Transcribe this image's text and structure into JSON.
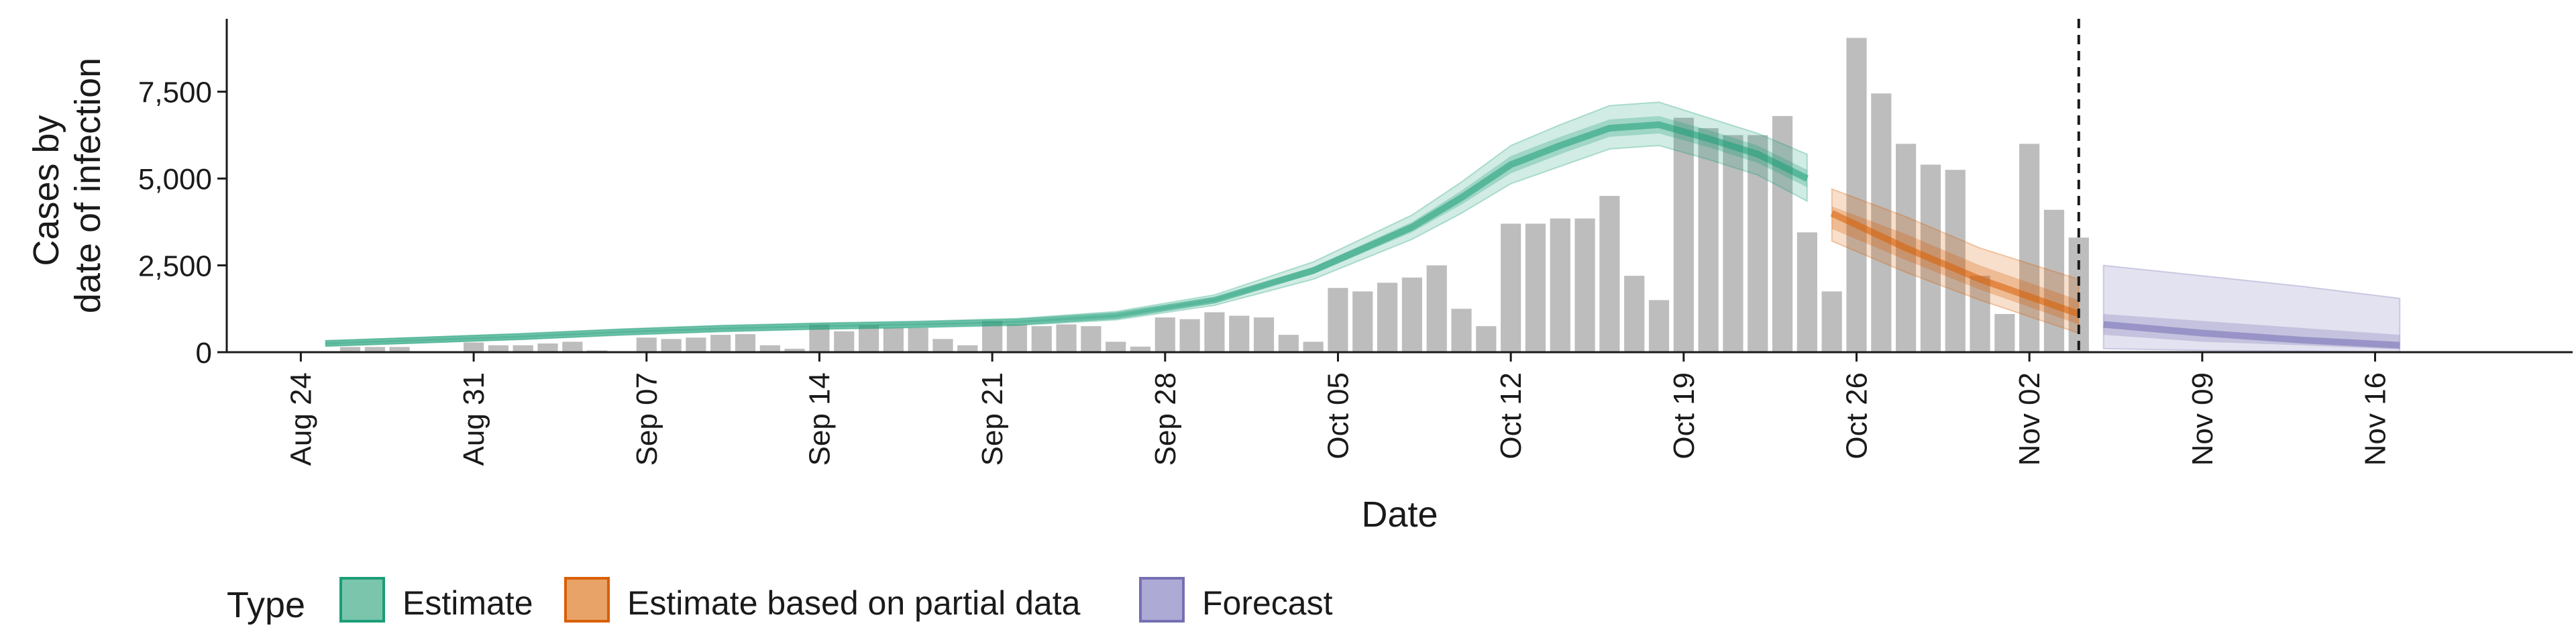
{
  "chart_data": {
    "type": "bar",
    "xlabel": "Date",
    "ylabel_lines": [
      "Cases by",
      "date of infection"
    ],
    "ylim": [
      0,
      9600
    ],
    "y_ticks": [
      0,
      2500,
      5000,
      7500
    ],
    "y_tick_labels": [
      "0",
      "2,500",
      "5,000",
      "7,500"
    ],
    "x_start": "2020-08-24",
    "x_range_days": [
      -3,
      92
    ],
    "x_ticks": [
      "2020-08-24",
      "2020-08-31",
      "2020-09-07",
      "2020-09-14",
      "2020-09-21",
      "2020-09-28",
      "2020-10-05",
      "2020-10-12",
      "2020-10-19",
      "2020-10-26",
      "2020-11-02",
      "2020-11-09",
      "2020-11-16"
    ],
    "x_tick_labels": [
      "Aug 24",
      "Aug 31",
      "Sep 07",
      "Sep 14",
      "Sep 21",
      "Sep 28",
      "Oct 05",
      "Oct 12",
      "Oct 19",
      "Oct 26",
      "Nov 02",
      "Nov 09",
      "Nov 16"
    ],
    "vline_date": "2020-11-04",
    "bars": {
      "color": "#bdbdbd",
      "dates": [
        "2020-08-26",
        "2020-08-27",
        "2020-08-28",
        "2020-08-29",
        "2020-08-30",
        "2020-08-31",
        "2020-09-01",
        "2020-09-02",
        "2020-09-03",
        "2020-09-04",
        "2020-09-05",
        "2020-09-06",
        "2020-09-07",
        "2020-09-08",
        "2020-09-09",
        "2020-09-10",
        "2020-09-11",
        "2020-09-12",
        "2020-09-13",
        "2020-09-14",
        "2020-09-15",
        "2020-09-16",
        "2020-09-17",
        "2020-09-18",
        "2020-09-19",
        "2020-09-20",
        "2020-09-21",
        "2020-09-22",
        "2020-09-23",
        "2020-09-24",
        "2020-09-25",
        "2020-09-26",
        "2020-09-27",
        "2020-09-28",
        "2020-09-29",
        "2020-09-30",
        "2020-10-01",
        "2020-10-02",
        "2020-10-03",
        "2020-10-04",
        "2020-10-05",
        "2020-10-06",
        "2020-10-07",
        "2020-10-08",
        "2020-10-09",
        "2020-10-10",
        "2020-10-11",
        "2020-10-12",
        "2020-10-13",
        "2020-10-14",
        "2020-10-15",
        "2020-10-16",
        "2020-10-17",
        "2020-10-18",
        "2020-10-19",
        "2020-10-20",
        "2020-10-21",
        "2020-10-22",
        "2020-10-23",
        "2020-10-24",
        "2020-10-25",
        "2020-10-26",
        "2020-10-27",
        "2020-10-28",
        "2020-10-29",
        "2020-10-30",
        "2020-10-31",
        "2020-11-01",
        "2020-11-02",
        "2020-11-03",
        "2020-11-04"
      ],
      "values": [
        150,
        150,
        150,
        0,
        0,
        280,
        200,
        200,
        250,
        300,
        50,
        0,
        420,
        380,
        420,
        500,
        520,
        200,
        100,
        800,
        600,
        780,
        700,
        700,
        380,
        200,
        900,
        800,
        750,
        800,
        750,
        300,
        160,
        1000,
        950,
        1150,
        1050,
        1000,
        500,
        300,
        1850,
        1750,
        2000,
        2150,
        2500,
        1250,
        750,
        3700,
        3700,
        3850,
        3850,
        4500,
        2200,
        1500,
        6750,
        6450,
        6250,
        6250,
        6800,
        3450,
        1750,
        9050,
        7450,
        6000,
        5400,
        5250,
        2200,
        1100,
        6000,
        4100,
        3300
      ]
    },
    "series": [
      {
        "name": "Estimate",
        "color": "#1b9e77",
        "dates": [
          "2020-08-25",
          "2020-08-29",
          "2020-09-02",
          "2020-09-06",
          "2020-09-10",
          "2020-09-14",
          "2020-09-18",
          "2020-09-22",
          "2020-09-26",
          "2020-09-30",
          "2020-10-04",
          "2020-10-08",
          "2020-10-10",
          "2020-10-12",
          "2020-10-14",
          "2020-10-16",
          "2020-10-18",
          "2020-10-20",
          "2020-10-22",
          "2020-10-24"
        ],
        "median": [
          250,
          350,
          450,
          580,
          680,
          750,
          800,
          870,
          1050,
          1500,
          2350,
          3600,
          4450,
          5400,
          5950,
          6450,
          6550,
          6150,
          5700,
          5000
        ],
        "inner": [
          [
            220,
            280
          ],
          [
            320,
            380
          ],
          [
            420,
            480
          ],
          [
            550,
            610
          ],
          [
            650,
            710
          ],
          [
            720,
            780
          ],
          [
            770,
            830
          ],
          [
            840,
            900
          ],
          [
            1010,
            1090
          ],
          [
            1450,
            1560
          ],
          [
            2250,
            2450
          ],
          [
            3450,
            3750
          ],
          [
            4250,
            4650
          ],
          [
            5150,
            5650
          ],
          [
            5700,
            6200
          ],
          [
            6200,
            6700
          ],
          [
            6300,
            6800
          ],
          [
            5900,
            6400
          ],
          [
            5450,
            5950
          ],
          [
            4750,
            5250
          ]
        ],
        "outer": [
          [
            180,
            330
          ],
          [
            270,
            430
          ],
          [
            370,
            540
          ],
          [
            490,
            670
          ],
          [
            590,
            770
          ],
          [
            660,
            840
          ],
          [
            710,
            890
          ],
          [
            770,
            970
          ],
          [
            930,
            1170
          ],
          [
            1350,
            1650
          ],
          [
            2100,
            2600
          ],
          [
            3250,
            3950
          ],
          [
            4000,
            4900
          ],
          [
            4850,
            5950
          ],
          [
            5350,
            6550
          ],
          [
            5850,
            7100
          ],
          [
            5950,
            7200
          ],
          [
            5550,
            6750
          ],
          [
            5100,
            6300
          ],
          [
            4350,
            5700
          ]
        ]
      },
      {
        "name": "Estimate based on partial data",
        "color": "#d95f02",
        "dates": [
          "2020-10-25",
          "2020-10-28",
          "2020-10-31",
          "2020-11-04"
        ],
        "median": [
          4000,
          3000,
          2100,
          1100
        ],
        "inner": [
          [
            3550,
            4200
          ],
          [
            2650,
            3400
          ],
          [
            1800,
            2500
          ],
          [
            800,
            1500
          ]
        ],
        "outer": [
          [
            3200,
            4700
          ],
          [
            2300,
            3900
          ],
          [
            1500,
            3000
          ],
          [
            550,
            2100
          ]
        ]
      },
      {
        "name": "Forecast",
        "color": "#7570b3",
        "dates": [
          "2020-11-05",
          "2020-11-09",
          "2020-11-13",
          "2020-11-17"
        ],
        "median": [
          800,
          550,
          350,
          200
        ],
        "inner": [
          [
            500,
            1100
          ],
          [
            300,
            900
          ],
          [
            200,
            700
          ],
          [
            80,
            500
          ]
        ],
        "outer": [
          [
            100,
            2500
          ],
          [
            50,
            2200
          ],
          [
            30,
            1900
          ],
          [
            0,
            1550
          ]
        ]
      }
    ],
    "legend": {
      "position": "bottom",
      "title": "Type",
      "items": [
        {
          "label": "Estimate",
          "fill": "#7bc5ad",
          "stroke": "#1b9e77"
        },
        {
          "label": "Estimate based on partial data",
          "fill": "#e8a369",
          "stroke": "#d95f02"
        },
        {
          "label": "Forecast",
          "fill": "#aeaad6",
          "stroke": "#7570b3"
        }
      ]
    }
  }
}
